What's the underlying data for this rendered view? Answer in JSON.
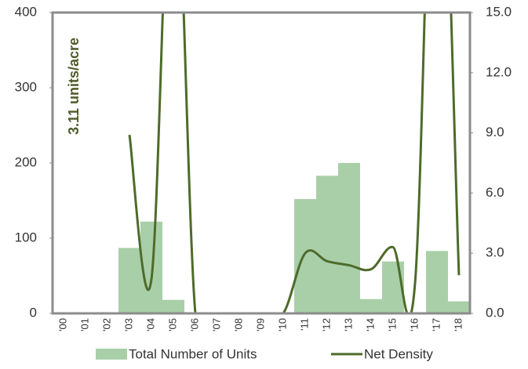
{
  "chart_data": {
    "type": "bar-line",
    "annotation": "3.11 units/acre",
    "categories": [
      "'00",
      "'01",
      "'02",
      "'03",
      "'04",
      "'05",
      "'06",
      "'07",
      "'08",
      "'09",
      "'10",
      "'11",
      "'12",
      "'13",
      "'14",
      "'15",
      "'16",
      "'17",
      "'18"
    ],
    "series": [
      {
        "name": "Total Number of Units",
        "type": "bar",
        "color": "#a9cfa9",
        "values": [
          0,
          0,
          0,
          87,
          122,
          18,
          0,
          0,
          0,
          0,
          0,
          152,
          183,
          200,
          19,
          69,
          0,
          83,
          16
        ]
      },
      {
        "name": "Net Density",
        "type": "line",
        "axis": "y2",
        "color": "#4e6b2a",
        "values": [
          null,
          null,
          null,
          8.9,
          1.7,
          25,
          0,
          0,
          0,
          0,
          0,
          3.0,
          2.6,
          2.4,
          2.2,
          3.3,
          1.5,
          30,
          1.9
        ]
      }
    ],
    "ylim": [
      0,
      400
    ],
    "yticks": [
      0,
      100,
      200,
      300,
      400
    ],
    "y2lim": [
      0,
      15
    ],
    "y2ticks": [
      {
        "value": 0,
        "label": "0.0"
      },
      {
        "value": 3,
        "label": "3.0"
      },
      {
        "value": 6,
        "label": "6.0"
      },
      {
        "value": 9,
        "label": "9.0"
      },
      {
        "value": 12,
        "label": "12.0"
      },
      {
        "value": 15,
        "label": "15.0"
      }
    ]
  }
}
